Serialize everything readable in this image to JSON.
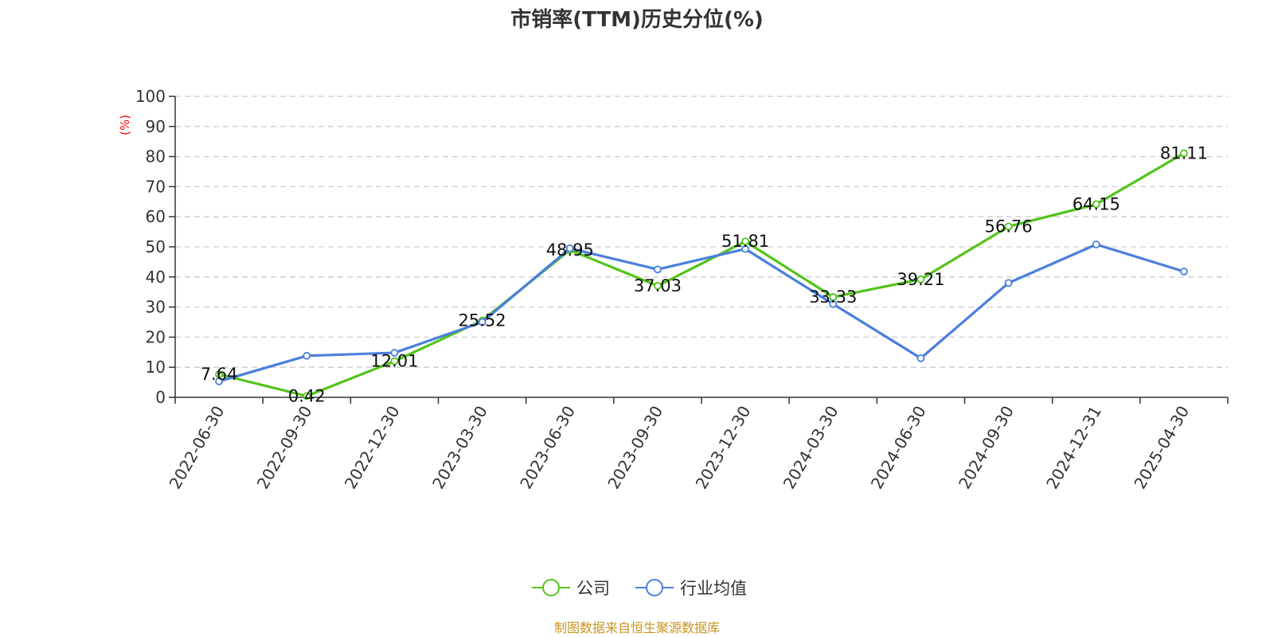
{
  "chart_data": {
    "type": "line",
    "title": "市销率(TTM)历史分位(%)",
    "y_unit": "(%)",
    "ylim": [
      0,
      100
    ],
    "y_ticks": [
      0,
      10,
      20,
      30,
      40,
      50,
      60,
      70,
      80,
      90,
      100
    ],
    "grid": true,
    "legend_position": "bottom-center",
    "categories": [
      "2022-06-30",
      "2022-09-30",
      "2022-12-30",
      "2023-03-30",
      "2023-06-30",
      "2023-09-30",
      "2023-12-30",
      "2024-03-30",
      "2024-06-30",
      "2024-09-30",
      "2024-12-31",
      "2025-04-30"
    ],
    "series": [
      {
        "name": "公司",
        "color": "#52c41a",
        "values": [
          7.64,
          0.42,
          12.01,
          25.52,
          48.95,
          37.03,
          51.81,
          33.33,
          39.21,
          56.76,
          64.15,
          81.11
        ],
        "data_labels": [
          "7.64",
          "0.42",
          "12.01",
          "25.52",
          "48.95",
          "37.03",
          "51.81",
          "33.33",
          "39.21",
          "56.76",
          "64.15",
          "81.11"
        ]
      },
      {
        "name": "行业均值",
        "color": "#4a7fdc",
        "values": [
          5.3,
          13.8,
          14.8,
          25.0,
          49.5,
          42.5,
          49.3,
          31.0,
          13.0,
          38.0,
          50.8,
          41.8
        ]
      }
    ]
  },
  "source": "制图数据来自恒生聚源数据库",
  "colors": {
    "unit": "#ff0000",
    "source": "#c8941f",
    "grid": "#cccccc",
    "axis": "#333333"
  }
}
